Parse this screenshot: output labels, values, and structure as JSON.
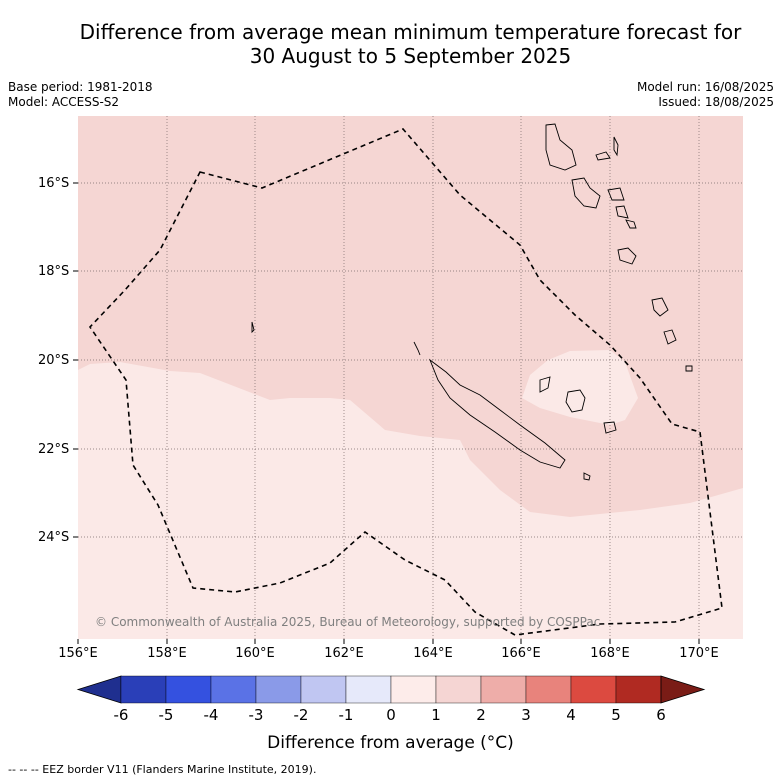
{
  "title_line1": "Difference from average mean minimum temperature forecast for",
  "title_line2": "30 August to 5 September 2025",
  "base_period": "Base period: 1981-2018",
  "model": "Model: ACCESS-S2",
  "model_run": "Model run: 16/08/2025",
  "issued": "Issued: 18/08/2025",
  "copyright": "© Commonwealth of Australia 2025, Bureau of Meteorology, supported by COSPPac",
  "lat_labels": [
    "16°S",
    "18°S",
    "20°S",
    "22°S",
    "24°S"
  ],
  "lon_labels": [
    "156°E",
    "158°E",
    "160°E",
    "162°E",
    "164°E",
    "166°E",
    "168°E",
    "170°E"
  ],
  "colorbar": {
    "title": "Difference from average (°C)",
    "ticks": [
      "-6",
      "-5",
      "-4",
      "-3",
      "-2",
      "-1",
      "0",
      "1",
      "2",
      "3",
      "4",
      "5",
      "6"
    ],
    "colors": [
      "#1f2f8f",
      "#2a3fb8",
      "#3451e0",
      "#5a72e6",
      "#8a9ae8",
      "#c0c6f2",
      "#e6e9fa",
      "#fdecea",
      "#f5d5d3",
      "#eeada9",
      "#e8837c",
      "#dc4a40",
      "#b02a22",
      "#7a1c16"
    ]
  },
  "map": {
    "lat_range": [
      -26.0,
      -14.5
    ],
    "lon_range": [
      156.0,
      171.0
    ],
    "anomaly_fill_colors": {
      "zero_to_one": "#fbe9e7",
      "one_to_two": "#f5d6d3",
      "two_to_three": "#fbe9e7"
    }
  },
  "footnote": "--  --  -- EEZ border V11 (Flanders Marine Institute, 2019)."
}
